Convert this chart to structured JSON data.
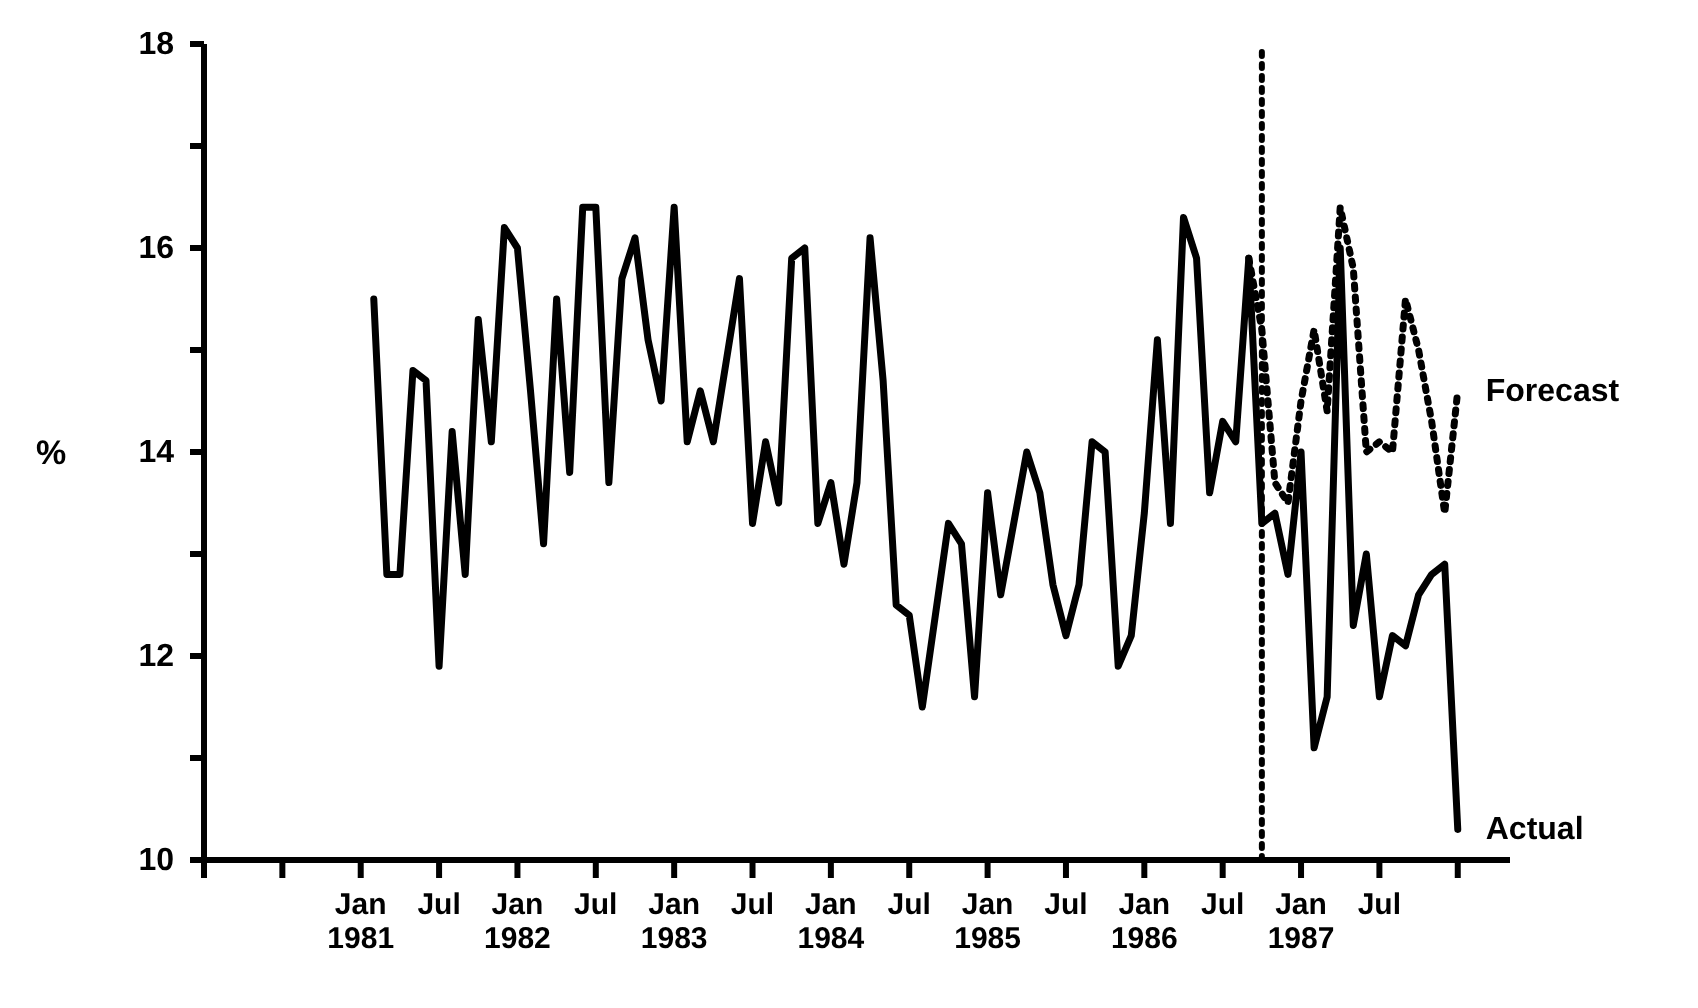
{
  "chart_data": {
    "type": "line",
    "ylabel": "%",
    "x": [
      "1981-02",
      "1981-03",
      "1981-04",
      "1981-05",
      "1981-06",
      "1981-07",
      "1981-08",
      "1981-09",
      "1981-10",
      "1981-11",
      "1981-12",
      "1982-01",
      "1982-02",
      "1982-03",
      "1982-04",
      "1982-05",
      "1982-06",
      "1982-07",
      "1982-08",
      "1982-09",
      "1982-10",
      "1982-11",
      "1982-12",
      "1983-01",
      "1983-02",
      "1983-03",
      "1983-04",
      "1983-05",
      "1983-06",
      "1983-07",
      "1983-08",
      "1983-09",
      "1983-10",
      "1983-11",
      "1983-12",
      "1984-01",
      "1984-02",
      "1984-03",
      "1984-04",
      "1984-05",
      "1984-06",
      "1984-07",
      "1984-08",
      "1984-09",
      "1984-10",
      "1984-11",
      "1984-12",
      "1985-01",
      "1985-02",
      "1985-03",
      "1985-04",
      "1985-05",
      "1985-06",
      "1985-07",
      "1985-08",
      "1985-09",
      "1985-10",
      "1985-11",
      "1985-12",
      "1986-01",
      "1986-02",
      "1986-03",
      "1986-04",
      "1986-05",
      "1986-06",
      "1986-07",
      "1986-08",
      "1986-09",
      "1986-10",
      "1986-11",
      "1986-12",
      "1987-01",
      "1987-02",
      "1987-03",
      "1987-04",
      "1987-05",
      "1987-06",
      "1987-07",
      "1987-08",
      "1987-09",
      "1987-10",
      "1987-11",
      "1987-12",
      "1988-01"
    ],
    "series": [
      {
        "name": "Actual",
        "color": "#000000",
        "line_style": "solid",
        "values": [
          15.5,
          12.8,
          12.8,
          14.8,
          14.7,
          11.9,
          14.2,
          12.8,
          15.3,
          14.1,
          16.2,
          16.0,
          14.6,
          13.1,
          15.5,
          13.8,
          16.4,
          16.4,
          13.7,
          15.7,
          16.1,
          15.1,
          14.5,
          16.4,
          14.1,
          14.6,
          14.1,
          14.9,
          15.7,
          13.3,
          14.1,
          13.5,
          15.9,
          16.0,
          13.3,
          13.7,
          12.9,
          13.7,
          16.1,
          14.7,
          12.5,
          12.4,
          11.5,
          12.4,
          13.3,
          13.1,
          11.6,
          13.6,
          12.6,
          13.3,
          14.0,
          13.6,
          12.7,
          12.2,
          12.7,
          14.1,
          14.0,
          11.9,
          12.2,
          13.4,
          15.1,
          13.3,
          16.3,
          15.9,
          13.6,
          14.3,
          14.1,
          15.9,
          13.3,
          13.4,
          12.8,
          14.0,
          11.1,
          11.6,
          16.0,
          12.3,
          13.0,
          11.6,
          12.2,
          12.1,
          12.6,
          12.8,
          12.9,
          10.3
        ]
      },
      {
        "name": "Forecast",
        "color": "#000000",
        "line_style": "dotted",
        "x": [
          "1986-09",
          "1986-10",
          "1986-11",
          "1986-12",
          "1987-01",
          "1987-02",
          "1987-03",
          "1987-04",
          "1987-05",
          "1987-06",
          "1987-07",
          "1987-08",
          "1987-09",
          "1987-10",
          "1987-11",
          "1987-12",
          "1988-01"
        ],
        "values": [
          15.9,
          15.2,
          13.7,
          13.5,
          14.5,
          15.2,
          14.4,
          16.4,
          15.8,
          14.0,
          14.1,
          14.0,
          15.5,
          15.0,
          14.3,
          13.4,
          14.6
        ]
      }
    ],
    "xlim": [
      "1980-01",
      "1988-05"
    ],
    "xticks": [
      {
        "value": "1980-01",
        "label": null
      },
      {
        "value": "1980-07",
        "label": null
      },
      {
        "value": "1981-01",
        "label": "Jan 1981"
      },
      {
        "value": "1981-07",
        "label": "Jul"
      },
      {
        "value": "1982-01",
        "label": "Jan 1982"
      },
      {
        "value": "1982-07",
        "label": "Jul"
      },
      {
        "value": "1983-01",
        "label": "Jan 1983"
      },
      {
        "value": "1983-07",
        "label": "Jul"
      },
      {
        "value": "1984-01",
        "label": "Jan 1984"
      },
      {
        "value": "1984-07",
        "label": "Jul"
      },
      {
        "value": "1985-01",
        "label": "Jan 1985"
      },
      {
        "value": "1985-07",
        "label": "Jul"
      },
      {
        "value": "1986-01",
        "label": "Jan 1986"
      },
      {
        "value": "1986-07",
        "label": "Jul"
      },
      {
        "value": "1987-01",
        "label": "Jan 1987"
      },
      {
        "value": "1987-07",
        "label": "Jul"
      },
      {
        "value": "1988-01",
        "label": null
      }
    ],
    "ylim": [
      10,
      18
    ],
    "yticks": [
      10,
      {
        "value": 11,
        "label": null
      },
      12,
      {
        "value": 13,
        "label": null
      },
      14,
      {
        "value": 15,
        "label": null
      },
      16,
      {
        "value": 17,
        "label": null
      },
      18
    ],
    "ref_lines": [
      {
        "axis": "x",
        "value": "1986-10",
        "line_style": "dotted",
        "color": "#000000"
      }
    ],
    "grid": false,
    "legend": false,
    "marker": "none"
  }
}
